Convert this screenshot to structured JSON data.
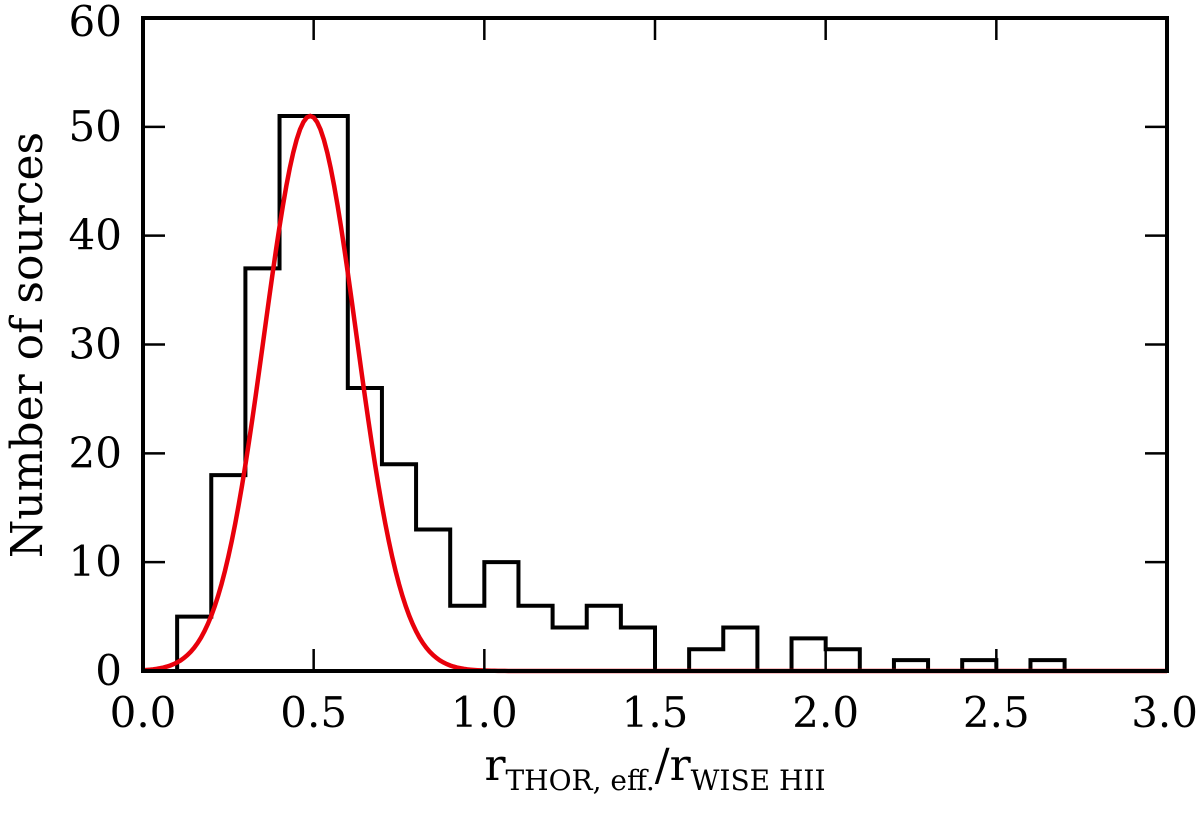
{
  "chart_data": {
    "type": "histogram",
    "xlabel": {
      "main": "r",
      "sub1": "THOR, eff.",
      "sep": "/r",
      "sub2": "WISE HII"
    },
    "ylabel": "Number of sources",
    "xlim": [
      0.0,
      3.0
    ],
    "ylim": [
      0,
      60
    ],
    "xticks": [
      0.0,
      0.5,
      1.0,
      1.5,
      2.0,
      2.5,
      3.0
    ],
    "xtick_labels": [
      "0.0",
      "0.5",
      "1.0",
      "1.5",
      "2.0",
      "2.5",
      "3.0"
    ],
    "yticks": [
      0,
      10,
      20,
      30,
      40,
      50,
      60
    ],
    "ytick_labels": [
      "0",
      "10",
      "20",
      "30",
      "40",
      "50",
      "60"
    ],
    "grid": false,
    "bin_edges": [
      0.0,
      0.1,
      0.2,
      0.3,
      0.4,
      0.5,
      0.6,
      0.7,
      0.8,
      0.9,
      1.0,
      1.1,
      1.2,
      1.3,
      1.4,
      1.5,
      1.6,
      1.7,
      1.8,
      1.9,
      2.0,
      2.1,
      2.2,
      2.3,
      2.4,
      2.5,
      2.6,
      2.7,
      2.8,
      2.9,
      3.0
    ],
    "counts": [
      0,
      5,
      18,
      37,
      51,
      51,
      26,
      19,
      13,
      6,
      10,
      6,
      4,
      6,
      4,
      0,
      2,
      4,
      0,
      3,
      2,
      0,
      1,
      0,
      1,
      0,
      1,
      0,
      0,
      0
    ],
    "histogram_color": "#000000",
    "fit": {
      "type": "gaussian",
      "amplitude": 51,
      "mean": 0.49,
      "sigma": 0.135,
      "color": "#e8000b"
    }
  }
}
